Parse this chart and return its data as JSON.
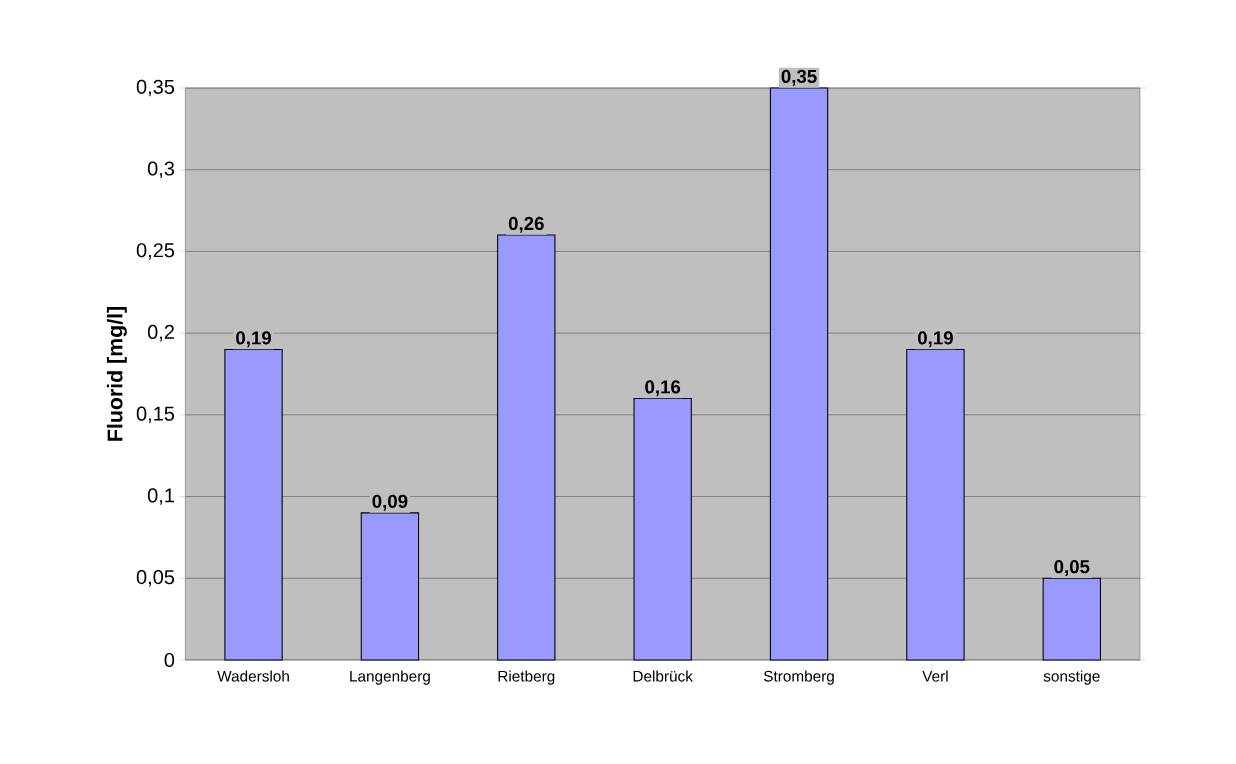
{
  "chart_data": {
    "type": "bar",
    "ylabel": "Fluorid [mg/l]",
    "categories": [
      "Wadersloh",
      "Langenberg",
      "Rietberg",
      "Delbrück",
      "Stromberg",
      "Verl",
      "sonstige"
    ],
    "values": [
      0.19,
      0.09,
      0.26,
      0.16,
      0.35,
      0.19,
      0.05
    ],
    "value_labels": [
      "0,19",
      "0,09",
      "0,26",
      "0,16",
      "0,35",
      "0,19",
      "0,05"
    ],
    "color": "#9999ff",
    "ylim": [
      0,
      0.35
    ],
    "yticks": [
      {
        "value": 0,
        "label": "0"
      },
      {
        "value": 0.05,
        "label": "0,05"
      },
      {
        "value": 0.1,
        "label": "0,1"
      },
      {
        "value": 0.15,
        "label": "0,15"
      },
      {
        "value": 0.2,
        "label": "0,2"
      },
      {
        "value": 0.25,
        "label": "0,25"
      },
      {
        "value": 0.3,
        "label": "0,3"
      },
      {
        "value": 0.35,
        "label": "0,35"
      }
    ],
    "grid": "y"
  }
}
